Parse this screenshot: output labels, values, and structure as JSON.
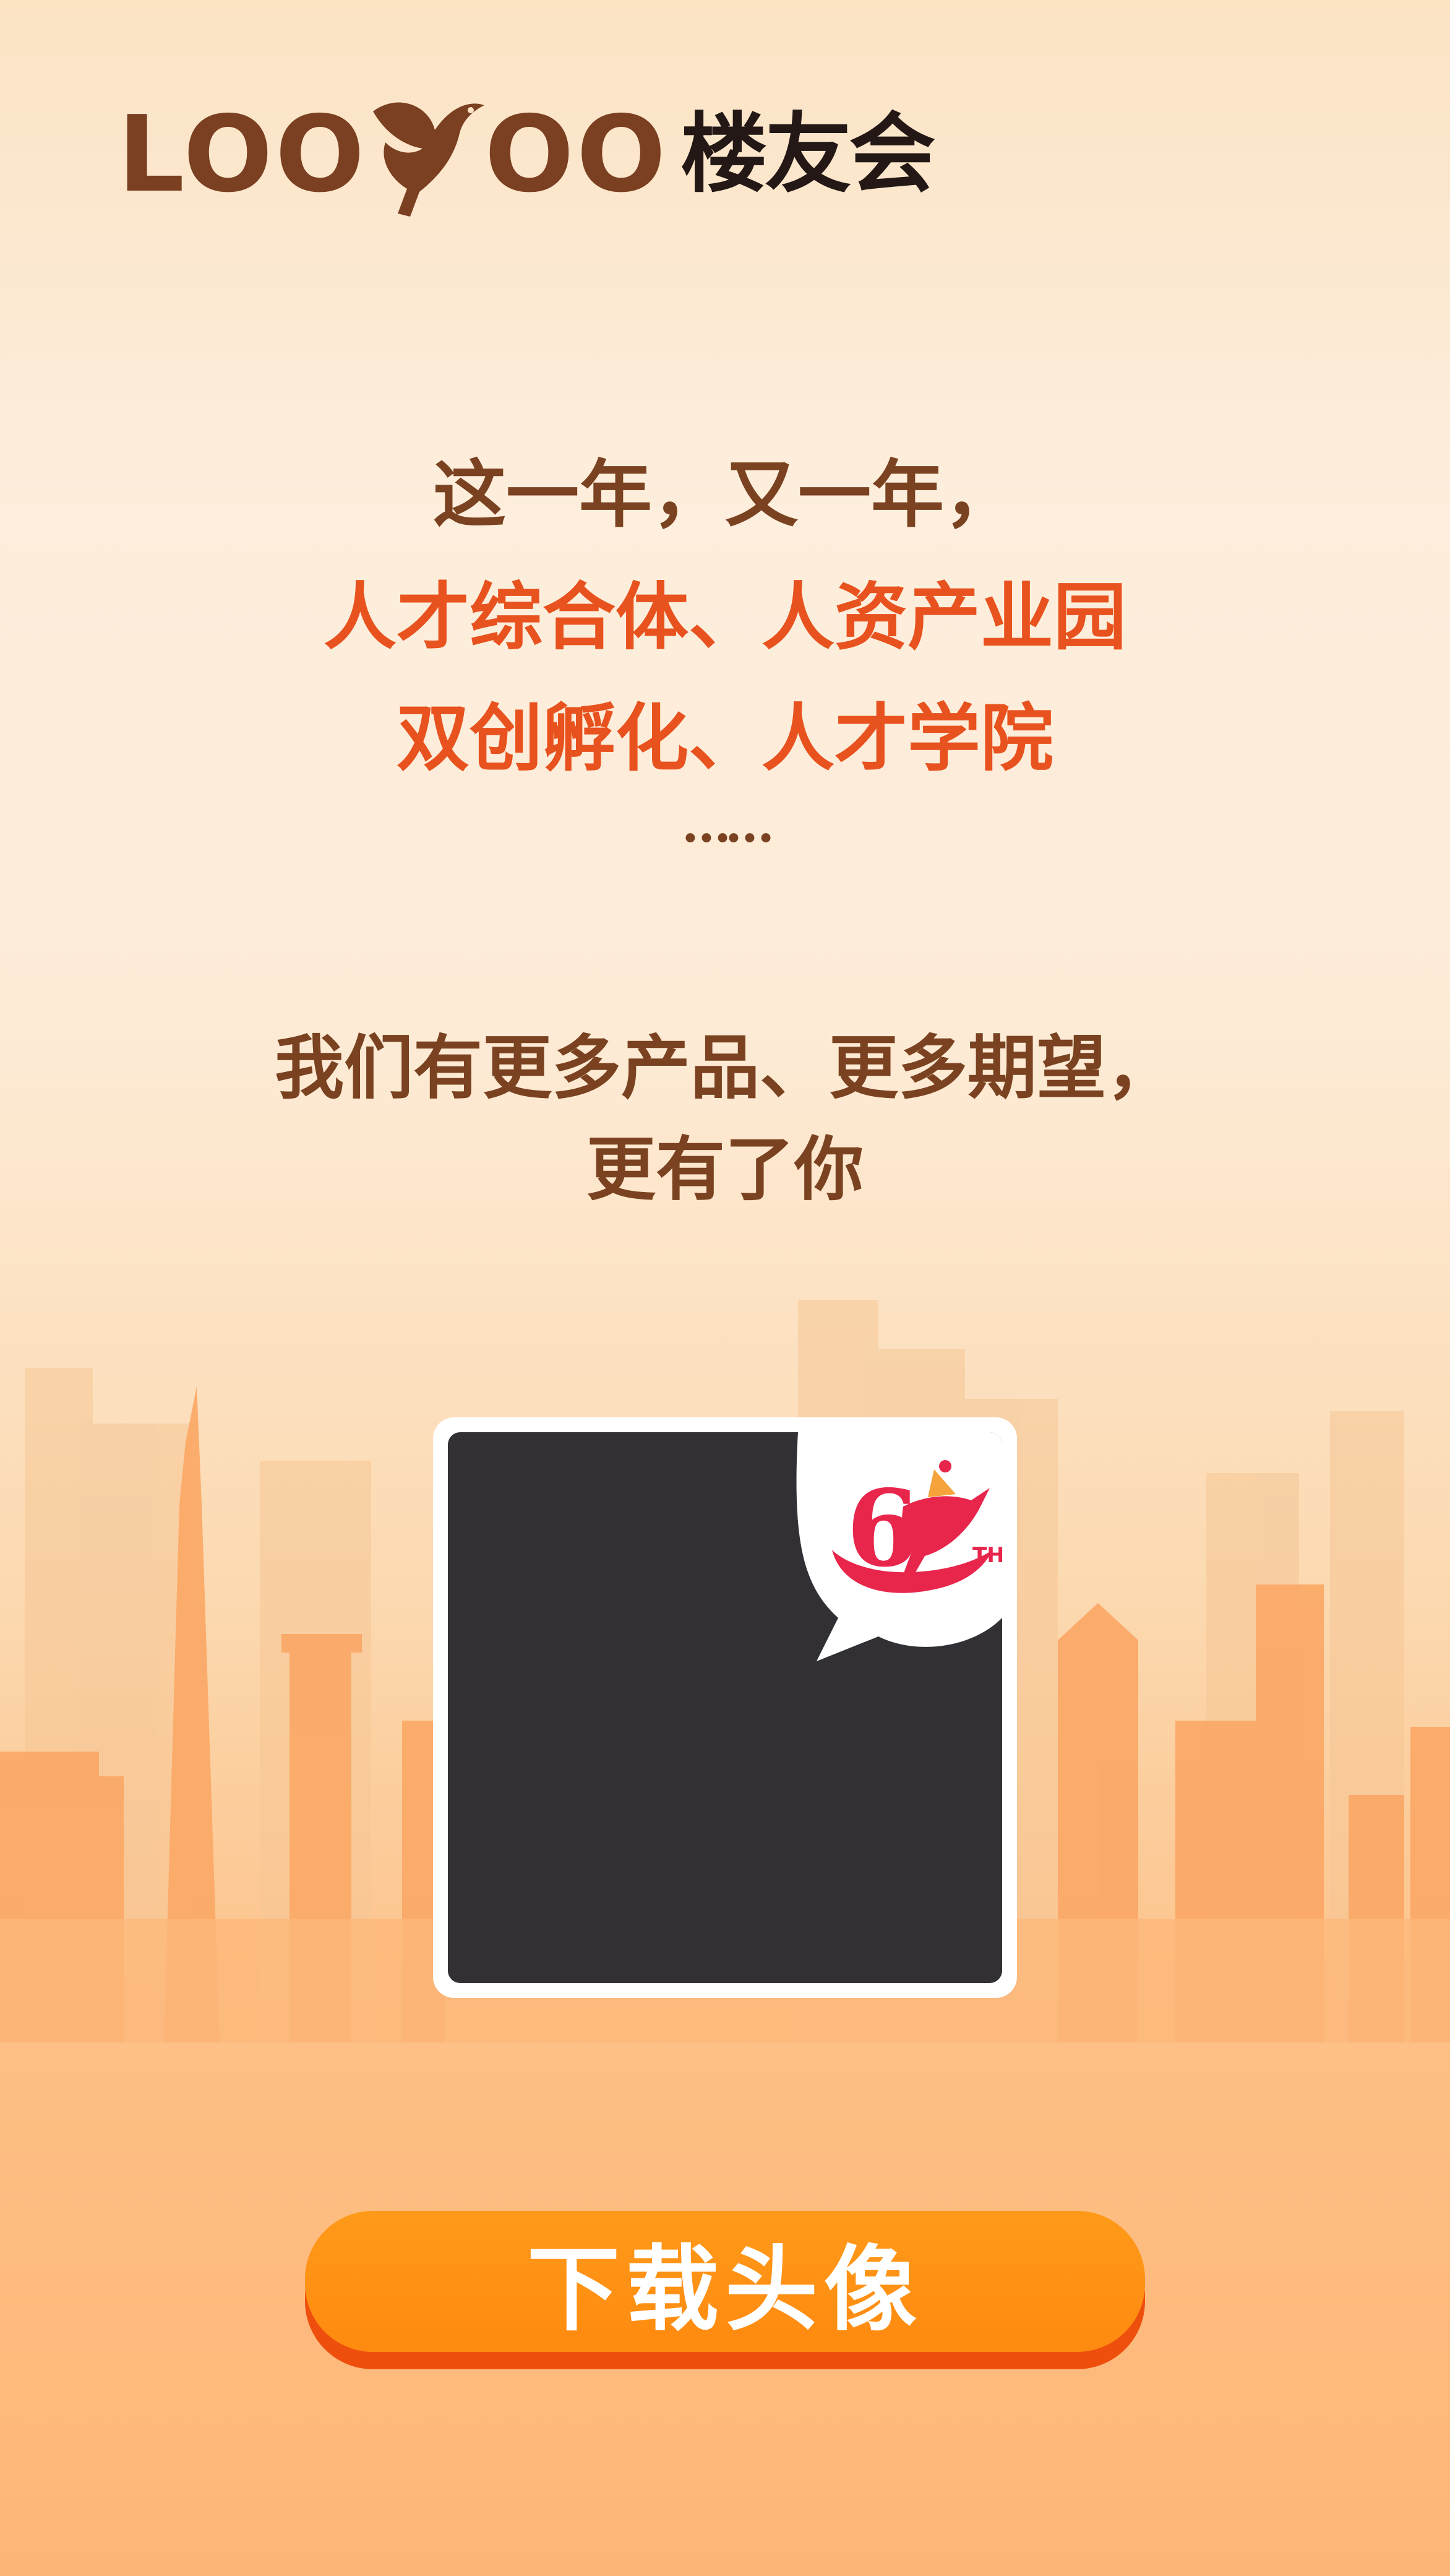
{
  "brand": {
    "logo_text_en_left": "LOO",
    "logo_text_en_right": "OO",
    "logo_text_cn": "楼友会",
    "logo_icon": "bird-logo-icon"
  },
  "intro": {
    "line1": "这一年，又一年，",
    "line2": "人才综合体、人资产业园",
    "line3": "双创孵化、人才学院",
    "ellipsis": "……"
  },
  "tagline": {
    "line1": "我们有更多产品、更多期望，",
    "line2": "更有了你"
  },
  "avatar": {
    "badge_number": "6",
    "badge_suffix": "TH",
    "badge_icon": "anniversary-6th-badge-icon"
  },
  "download_button": {
    "label": "下载头像"
  },
  "colors": {
    "brown_text": "#7a4220",
    "orange_text": "#e8521e",
    "button_orange": "#ff9116",
    "badge_red": "#e8264c"
  }
}
